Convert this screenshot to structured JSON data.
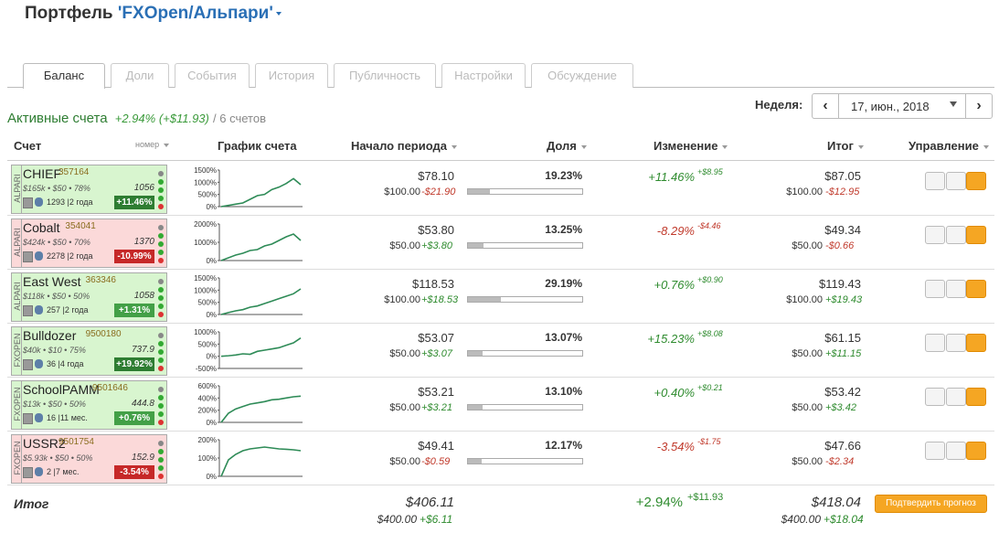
{
  "header": {
    "title": "Портфель",
    "portfolio": "'FXOpen/Альпари'"
  },
  "tabs": [
    "Баланс",
    "Доли",
    "События",
    "История",
    "Публичность",
    "Настройки",
    "Обсуждение"
  ],
  "summary": {
    "label": "Активные счета",
    "change": "+2.94% (+$11.93)",
    "count": "/ 6 счетов"
  },
  "week": {
    "label": "Неделя:",
    "value": "17, июн., 2018"
  },
  "columns": {
    "account": "Счет",
    "number": "номер",
    "chart": "График счета",
    "start": "Начало периода",
    "share": "Доля",
    "change": "Изменение",
    "end": "Итог",
    "control": "Управление"
  },
  "rows": [
    {
      "broker": "ALPARI",
      "name": "CHIEF",
      "number": "357164",
      "stats": "$165k • $50 • 78%",
      "balance": "1056",
      "info": "1293 |2 года",
      "badge": "+11.46%",
      "card_color": "#d8f5cf",
      "badge_color": "#2e7d32",
      "chart": {
        "ylim": [
          0,
          1500
        ],
        "yticks": [
          {
            "value": 1500,
            "label": "1500%"
          },
          {
            "value": 1000,
            "label": "1000%"
          },
          {
            "value": 500,
            "label": "500%"
          },
          {
            "value": 0,
            "label": "0%"
          }
        ],
        "values": [
          0,
          50,
          100,
          150,
          300,
          450,
          500,
          700,
          800,
          950,
          1150,
          900
        ]
      },
      "start": "$78.10",
      "start_base": "$100.00",
      "start_diff": "-$21.90",
      "share": {
        "value": 19.23,
        "label": "19.23%"
      },
      "change": "+11.46%",
      "change_abs": "+$8.95",
      "end": "$87.05",
      "end_base": "$100.00",
      "end_diff": "-$12.95"
    },
    {
      "broker": "ALPARI",
      "name": "Cobalt",
      "number": "354041",
      "stats": "$424k • $50 • 70%",
      "balance": "1370",
      "info": "2278 |2 года",
      "badge": "-10.99%",
      "card_color": "#fbd9d9",
      "badge_color": "#c62828",
      "chart": {
        "ylim": [
          0,
          2000
        ],
        "yticks": [
          {
            "value": 2000,
            "label": "2000%"
          },
          {
            "value": 1000,
            "label": "1000%"
          },
          {
            "value": 0,
            "label": "0%"
          }
        ],
        "values": [
          0,
          150,
          300,
          400,
          550,
          600,
          800,
          900,
          1100,
          1300,
          1450,
          1100
        ]
      },
      "start": "$53.80",
      "start_base": "$50.00",
      "start_diff": "+$3.80",
      "share": {
        "value": 13.25,
        "label": "13.25%"
      },
      "change": "-8.29%",
      "change_abs": "-$4.46",
      "end": "$49.34",
      "end_base": "$50.00",
      "end_diff": "-$0.66"
    },
    {
      "broker": "ALPARI",
      "name": "East West",
      "number": "363346",
      "stats": "$118k • $50 • 50%",
      "balance": "1058",
      "info": "257 |2 года",
      "badge": "+1.31%",
      "card_color": "#d8f5cf",
      "badge_color": "#43a047",
      "chart": {
        "ylim": [
          0,
          1500
        ],
        "yticks": [
          {
            "value": 1500,
            "label": "1500%"
          },
          {
            "value": 1000,
            "label": "1000%"
          },
          {
            "value": 500,
            "label": "500%"
          },
          {
            "value": 0,
            "label": "0%"
          }
        ],
        "values": [
          0,
          80,
          150,
          200,
          300,
          350,
          450,
          550,
          650,
          750,
          850,
          1050
        ]
      },
      "start": "$118.53",
      "start_base": "$100.00",
      "start_diff": "+$18.53",
      "share": {
        "value": 29.19,
        "label": "29.19%"
      },
      "change": "+0.76%",
      "change_abs": "+$0.90",
      "end": "$119.43",
      "end_base": "$100.00",
      "end_diff": "+$19.43"
    },
    {
      "broker": "FXOPEN",
      "name": "Bulldozer",
      "number": "9500180",
      "stats": "$40k • $10 • 75%",
      "balance": "737.9",
      "info": "36 |4 года",
      "badge": "+19.92%",
      "card_color": "#d8f5cf",
      "badge_color": "#2e7d32",
      "chart": {
        "ylim": [
          -500,
          1000
        ],
        "yticks": [
          {
            "value": 1000,
            "label": "1000%"
          },
          {
            "value": 500,
            "label": "500%"
          },
          {
            "value": 0,
            "label": "0%"
          },
          {
            "value": -500,
            "label": "-500%"
          }
        ],
        "values": [
          0,
          20,
          50,
          100,
          80,
          200,
          250,
          300,
          350,
          450,
          550,
          750
        ]
      },
      "start": "$53.07",
      "start_base": "$50.00",
      "start_diff": "+$3.07",
      "share": {
        "value": 13.07,
        "label": "13.07%"
      },
      "change": "+15.23%",
      "change_abs": "+$8.08",
      "end": "$61.15",
      "end_base": "$50.00",
      "end_diff": "+$11.15"
    },
    {
      "broker": "FXOPEN",
      "name": "SchoolPAMM",
      "number": "9501646",
      "stats": "$13k • $50 • 50%",
      "balance": "444.8",
      "info": "16 |11 мес.",
      "badge": "+0.76%",
      "card_color": "#d8f5cf",
      "badge_color": "#43a047",
      "chart": {
        "ylim": [
          0,
          600
        ],
        "yticks": [
          {
            "value": 600,
            "label": "600%"
          },
          {
            "value": 400,
            "label": "400%"
          },
          {
            "value": 200,
            "label": "200%"
          },
          {
            "value": 0,
            "label": "0%"
          }
        ],
        "values": [
          0,
          150,
          220,
          260,
          300,
          320,
          340,
          370,
          380,
          400,
          420,
          430
        ]
      },
      "start": "$53.21",
      "start_base": "$50.00",
      "start_diff": "+$3.21",
      "share": {
        "value": 13.1,
        "label": "13.10%"
      },
      "change": "+0.40%",
      "change_abs": "+$0.21",
      "end": "$53.42",
      "end_base": "$50.00",
      "end_diff": "+$3.42"
    },
    {
      "broker": "FXOPEN",
      "name": "USSR2",
      "number": "9501754",
      "stats": "$5.93k • $50 • 50%",
      "balance": "152.9",
      "info": "2 |7 мес.",
      "badge": "-3.54%",
      "card_color": "#fbd9d9",
      "badge_color": "#c62828",
      "chart": {
        "ylim": [
          0,
          200
        ],
        "yticks": [
          {
            "value": 200,
            "label": "200%"
          },
          {
            "value": 100,
            "label": "100%"
          },
          {
            "value": 0,
            "label": "0%"
          }
        ],
        "values": [
          0,
          90,
          120,
          140,
          150,
          155,
          160,
          155,
          150,
          148,
          145,
          140
        ]
      },
      "start": "$49.41",
      "start_base": "$50.00",
      "start_diff": "-$0.59",
      "share": {
        "value": 12.17,
        "label": "12.17%"
      },
      "change": "-3.54%",
      "change_abs": "-$1.75",
      "end": "$47.66",
      "end_base": "$50.00",
      "end_diff": "-$2.34"
    }
  ],
  "total": {
    "label": "Итог",
    "start": "$406.11",
    "start_base": "$400.00",
    "start_diff": "+$6.11",
    "change": "+2.94%",
    "change_abs": "+$11.93",
    "end": "$418.04",
    "end_base": "$400.00",
    "end_diff": "+$18.04",
    "button": "Подтвердить прогноз"
  }
}
